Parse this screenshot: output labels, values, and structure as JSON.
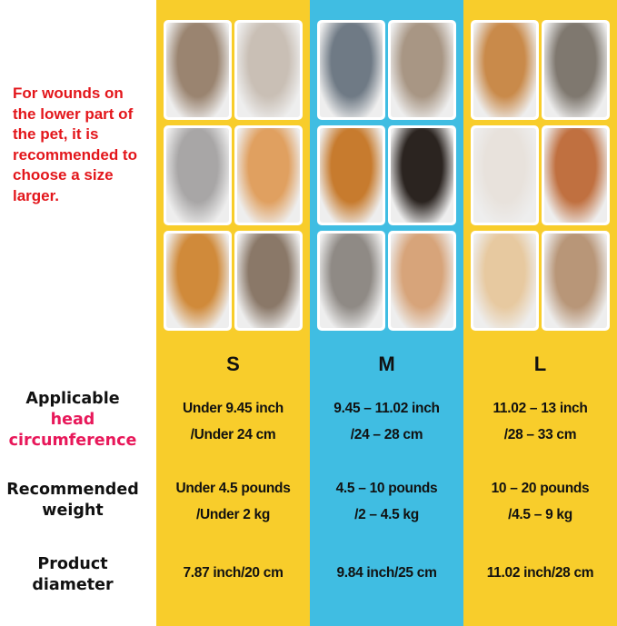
{
  "note": "For wounds on the lower part of the pet, it is recommended to choose a size larger.",
  "colors": {
    "yellow": "#f8cd2b",
    "blue": "#40bde2",
    "note_red": "#e3161b",
    "highlight_pink": "#e8185a"
  },
  "sizes": [
    {
      "label": "S",
      "head": [
        "Under 9.45 inch",
        "/Under 24 cm"
      ],
      "weight": [
        "Under 4.5 pounds",
        "/Under 2 kg"
      ],
      "diameter": "7.87 inch/20 cm"
    },
    {
      "label": "M",
      "head": [
        "9.45 – 11.02 inch",
        "/24 – 28 cm"
      ],
      "weight": [
        "4.5 – 10 pounds",
        "/2 – 4.5 kg"
      ],
      "diameter": "9.84 inch/25 cm"
    },
    {
      "label": "L",
      "head": [
        "11.02 – 13 inch",
        "/28 – 33 cm"
      ],
      "weight": [
        "10 – 20 pounds",
        "/4.5 – 9 kg"
      ],
      "diameter": "11.02 inch/28 cm"
    }
  ],
  "rows": {
    "head": {
      "line1": "Applicable",
      "line2": "head",
      "line3": "circumference"
    },
    "weight": {
      "line1": "Recommended",
      "line2": "weight"
    },
    "diameter": {
      "line1": "Product",
      "line2": "diameter"
    }
  }
}
